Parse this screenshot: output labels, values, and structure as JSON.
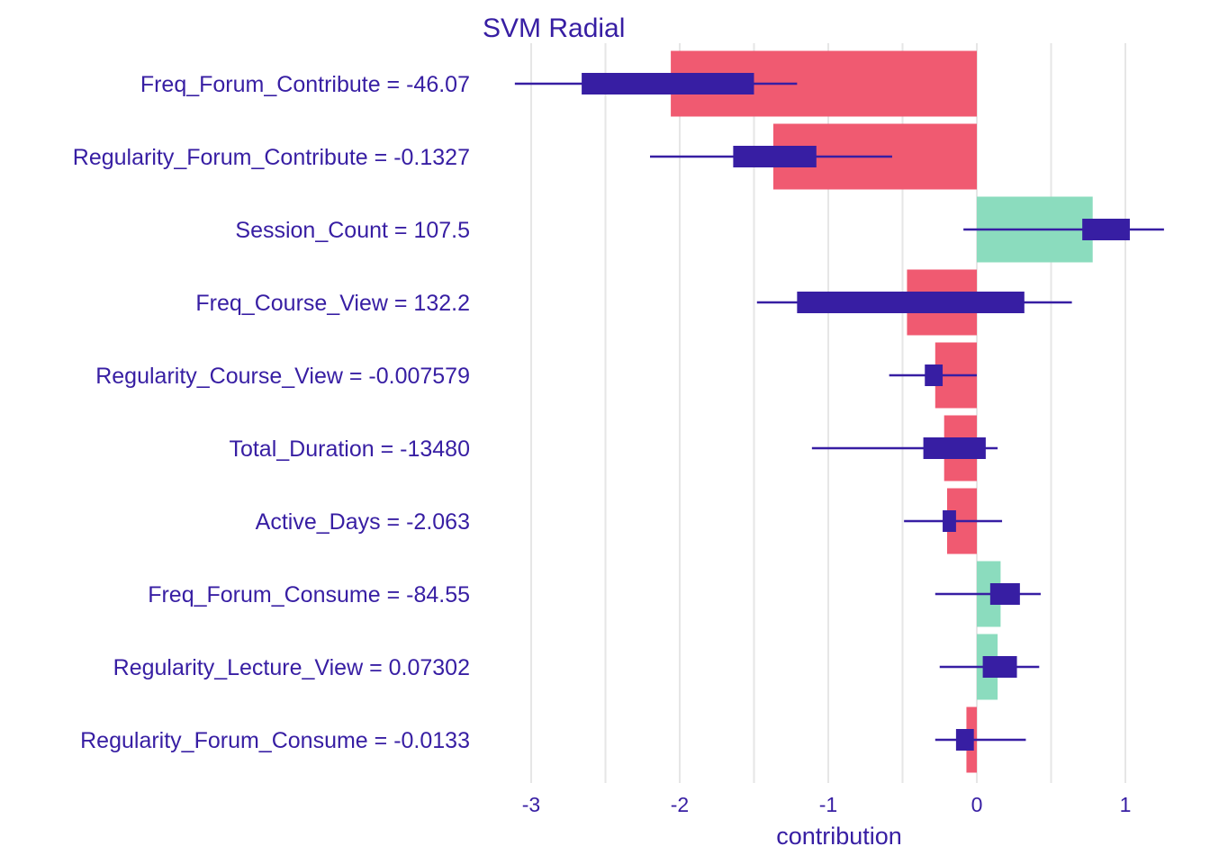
{
  "chart_data": {
    "type": "bar",
    "title": "SVM Radial",
    "xlabel": "contribution",
    "ylabel": "",
    "xlim": [
      -3.3,
      1.2
    ],
    "x_ticks": [
      -3,
      -2,
      -1,
      0,
      1
    ],
    "x_tick_labels": [
      "-3",
      "-2",
      "-1",
      "0",
      "1"
    ],
    "grid": "vertical",
    "colors": {
      "positive": "#8bdcbe",
      "negative": "#f05a71",
      "box": "#371ea3",
      "text": "#371ea3",
      "grid": "#e6e6e6"
    },
    "features": [
      {
        "label": "Freq_Forum_Contribute = -46.07",
        "contribution": -2.06,
        "whisker_low": -3.11,
        "q1": -2.66,
        "q3": -1.5,
        "whisker_high": -1.21
      },
      {
        "label": "Regularity_Forum_Contribute = -0.1327",
        "contribution": -1.37,
        "whisker_low": -2.2,
        "q1": -1.64,
        "q3": -1.08,
        "whisker_high": -0.57
      },
      {
        "label": "Session_Count = 107.5",
        "contribution": 0.78,
        "whisker_low": -0.09,
        "q1": 0.71,
        "q3": 1.03,
        "whisker_high": 1.26
      },
      {
        "label": "Freq_Course_View = 132.2",
        "contribution": -0.47,
        "whisker_low": -1.48,
        "q1": -1.21,
        "q3": 0.32,
        "whisker_high": 0.64
      },
      {
        "label": "Regularity_Course_View = -0.007579",
        "contribution": -0.28,
        "whisker_low": -0.59,
        "q1": -0.35,
        "q3": -0.23,
        "whisker_high": 0.0
      },
      {
        "label": "Total_Duration = -13480",
        "contribution": -0.22,
        "whisker_low": -1.11,
        "q1": -0.36,
        "q3": 0.06,
        "whisker_high": 0.14
      },
      {
        "label": "Active_Days = -2.063",
        "contribution": -0.2,
        "whisker_low": -0.49,
        "q1": -0.23,
        "q3": -0.14,
        "whisker_high": 0.17
      },
      {
        "label": "Freq_Forum_Consume = -84.55",
        "contribution": 0.16,
        "whisker_low": -0.28,
        "q1": 0.09,
        "q3": 0.29,
        "whisker_high": 0.43
      },
      {
        "label": "Regularity_Lecture_View = 0.07302",
        "contribution": 0.14,
        "whisker_low": -0.25,
        "q1": 0.04,
        "q3": 0.27,
        "whisker_high": 0.42
      },
      {
        "label": "Regularity_Forum_Consume = -0.0133",
        "contribution": -0.07,
        "whisker_low": -0.28,
        "q1": -0.14,
        "q3": -0.02,
        "whisker_high": 0.33
      }
    ]
  }
}
